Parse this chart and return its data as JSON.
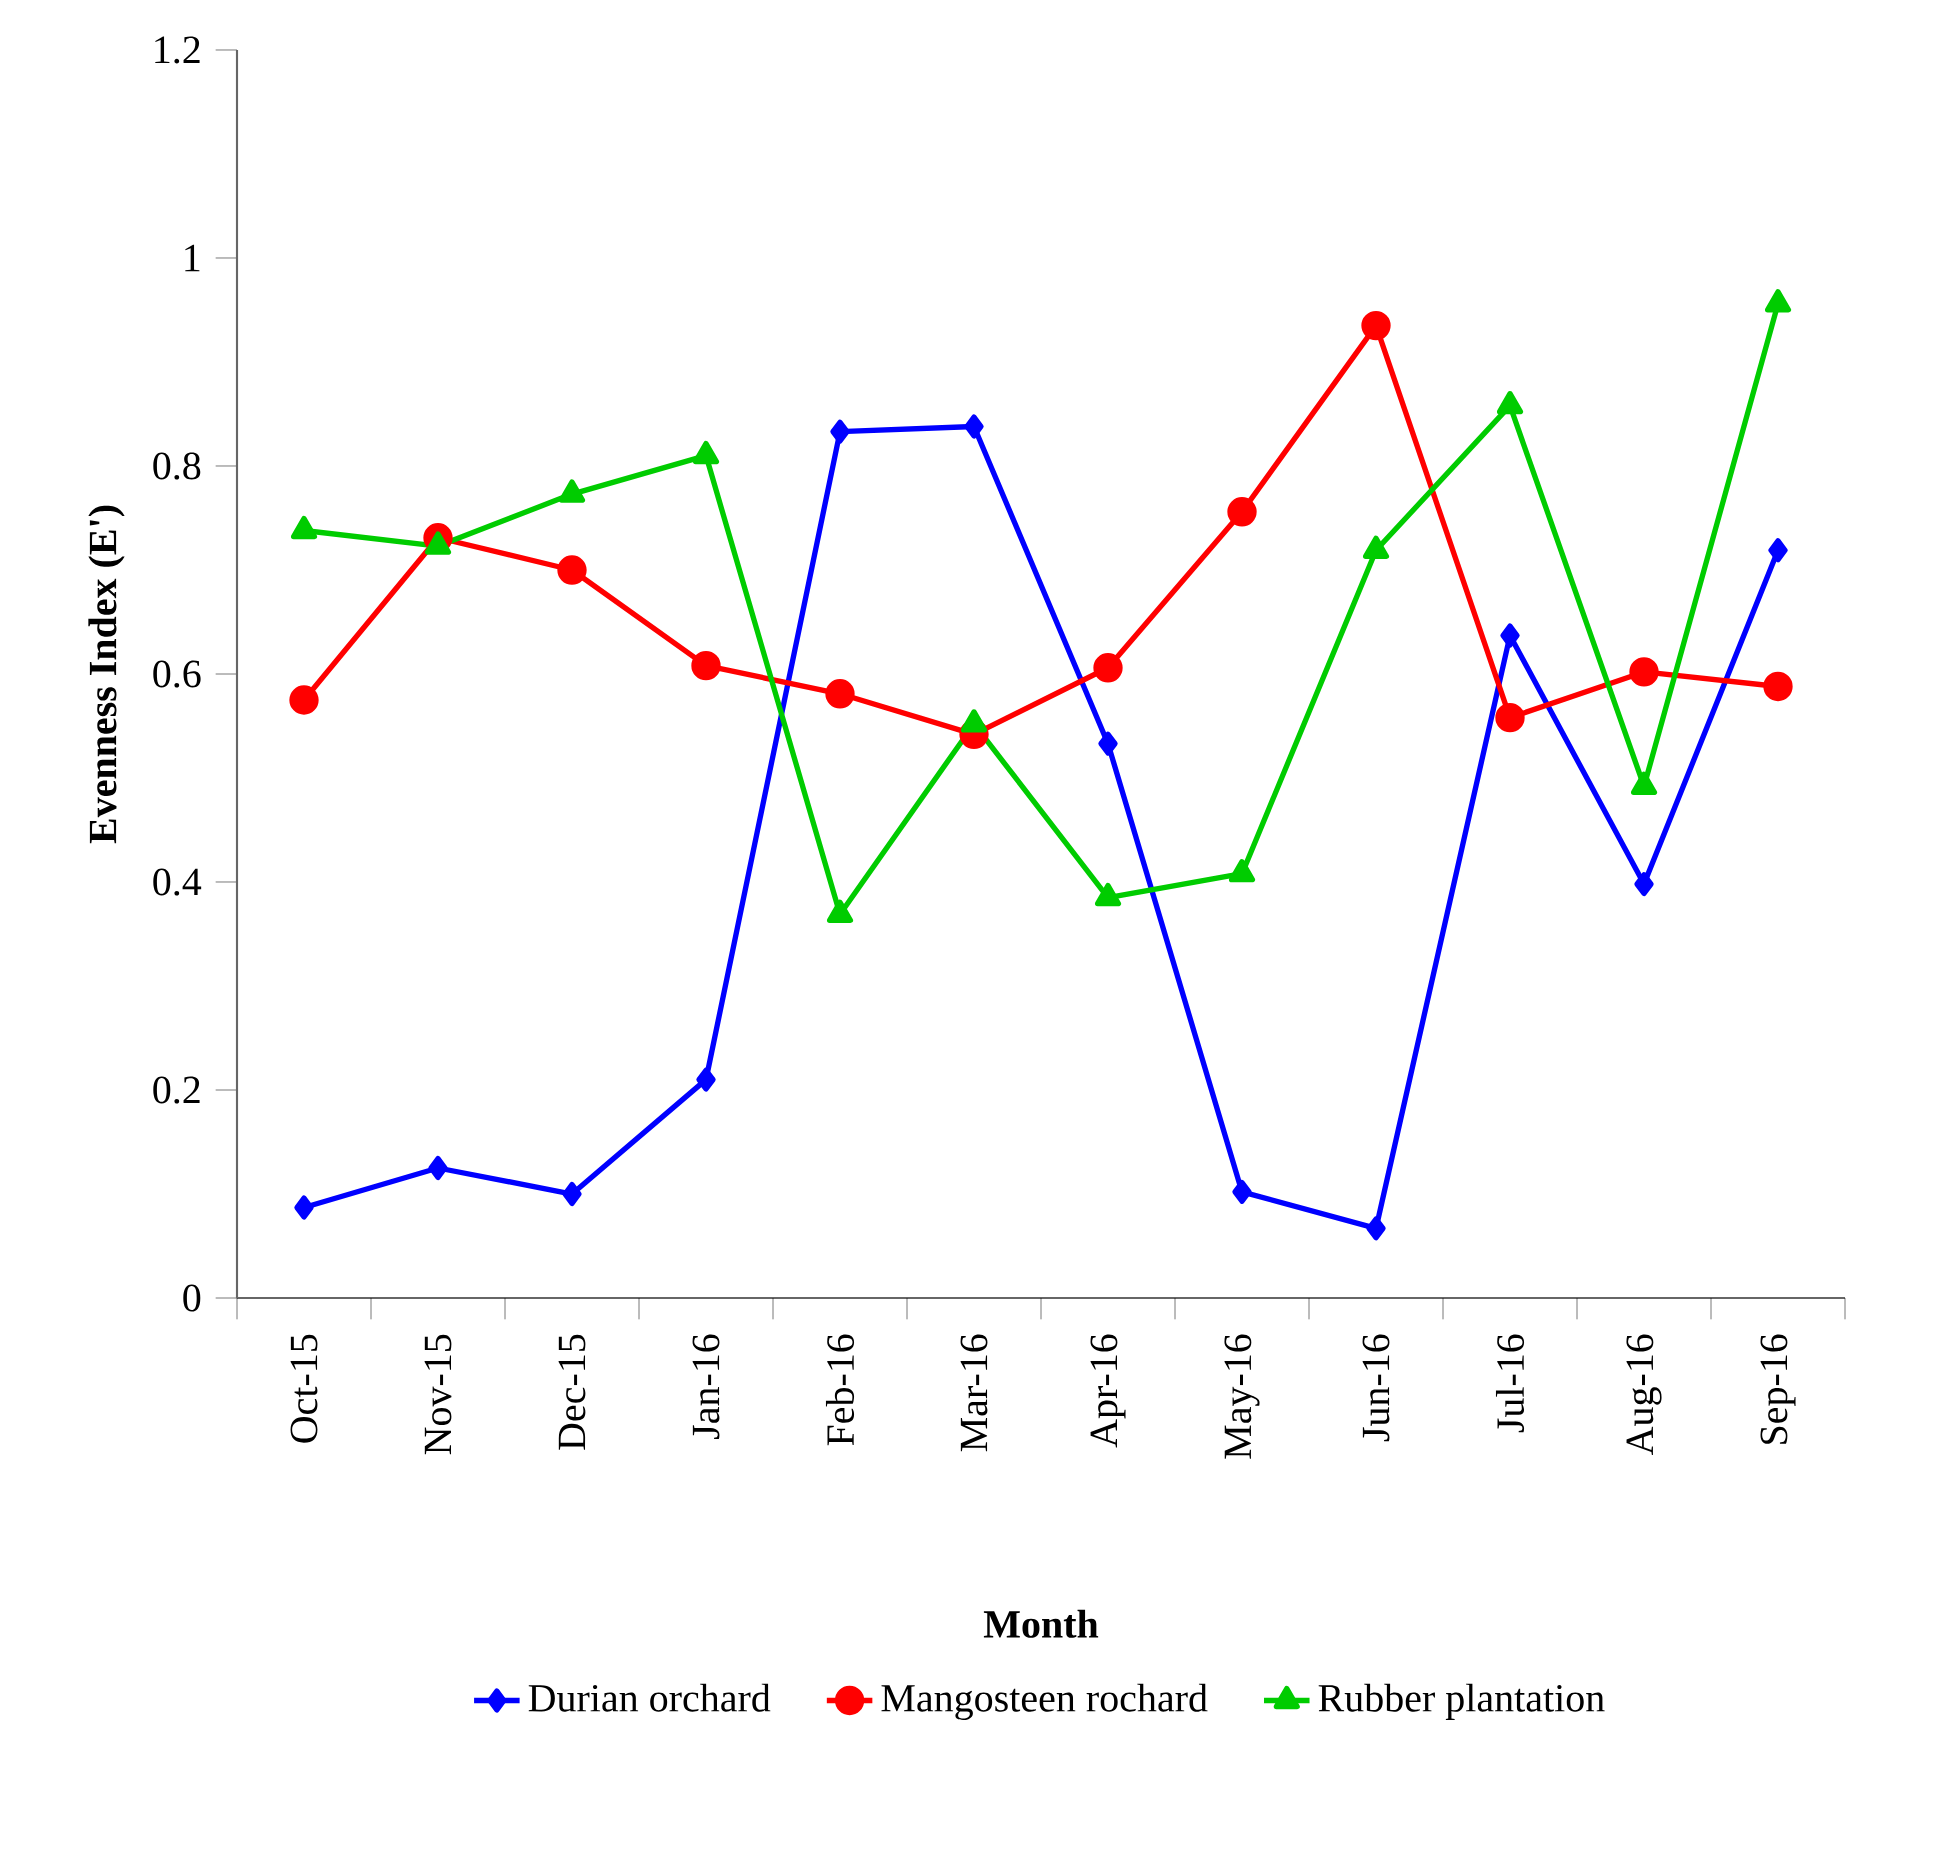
{
  "chart_data": {
    "type": "line",
    "xlabel": "Month",
    "ylabel": "Evenness Index (E')",
    "categories": [
      "Oct-15",
      "Nov-15",
      "Dec-15",
      "Jan-16",
      "Feb-16",
      "Mar-16",
      "Apr-16",
      "May-16",
      "Jun-16",
      "Jul-16",
      "Aug-16",
      "Sep-16"
    ],
    "series": [
      {
        "name": "Durian orchard",
        "color": "#0000ff",
        "marker": "diamond",
        "values": [
          0.087,
          0.125,
          0.1,
          0.21,
          0.833,
          0.838,
          0.533,
          0.102,
          0.067,
          0.637,
          0.398,
          0.719
        ]
      },
      {
        "name": "Mangosteen rochard",
        "color": "#ff0000",
        "marker": "circle",
        "values": [
          0.575,
          0.731,
          0.7,
          0.608,
          0.581,
          0.542,
          0.606,
          0.756,
          0.935,
          0.558,
          0.602,
          0.588
        ]
      },
      {
        "name": "Rubber plantation",
        "color": "#00cc00",
        "marker": "triangle",
        "values": [
          0.738,
          0.723,
          0.773,
          0.81,
          0.369,
          0.552,
          0.385,
          0.408,
          0.719,
          0.858,
          0.492,
          0.956
        ]
      }
    ],
    "ylim": [
      0,
      1.2
    ],
    "yticks": [
      0,
      0.2,
      0.4,
      0.6,
      0.8,
      1,
      1.2
    ],
    "grid": false,
    "legend": "bottom",
    "line_style": "solid"
  }
}
